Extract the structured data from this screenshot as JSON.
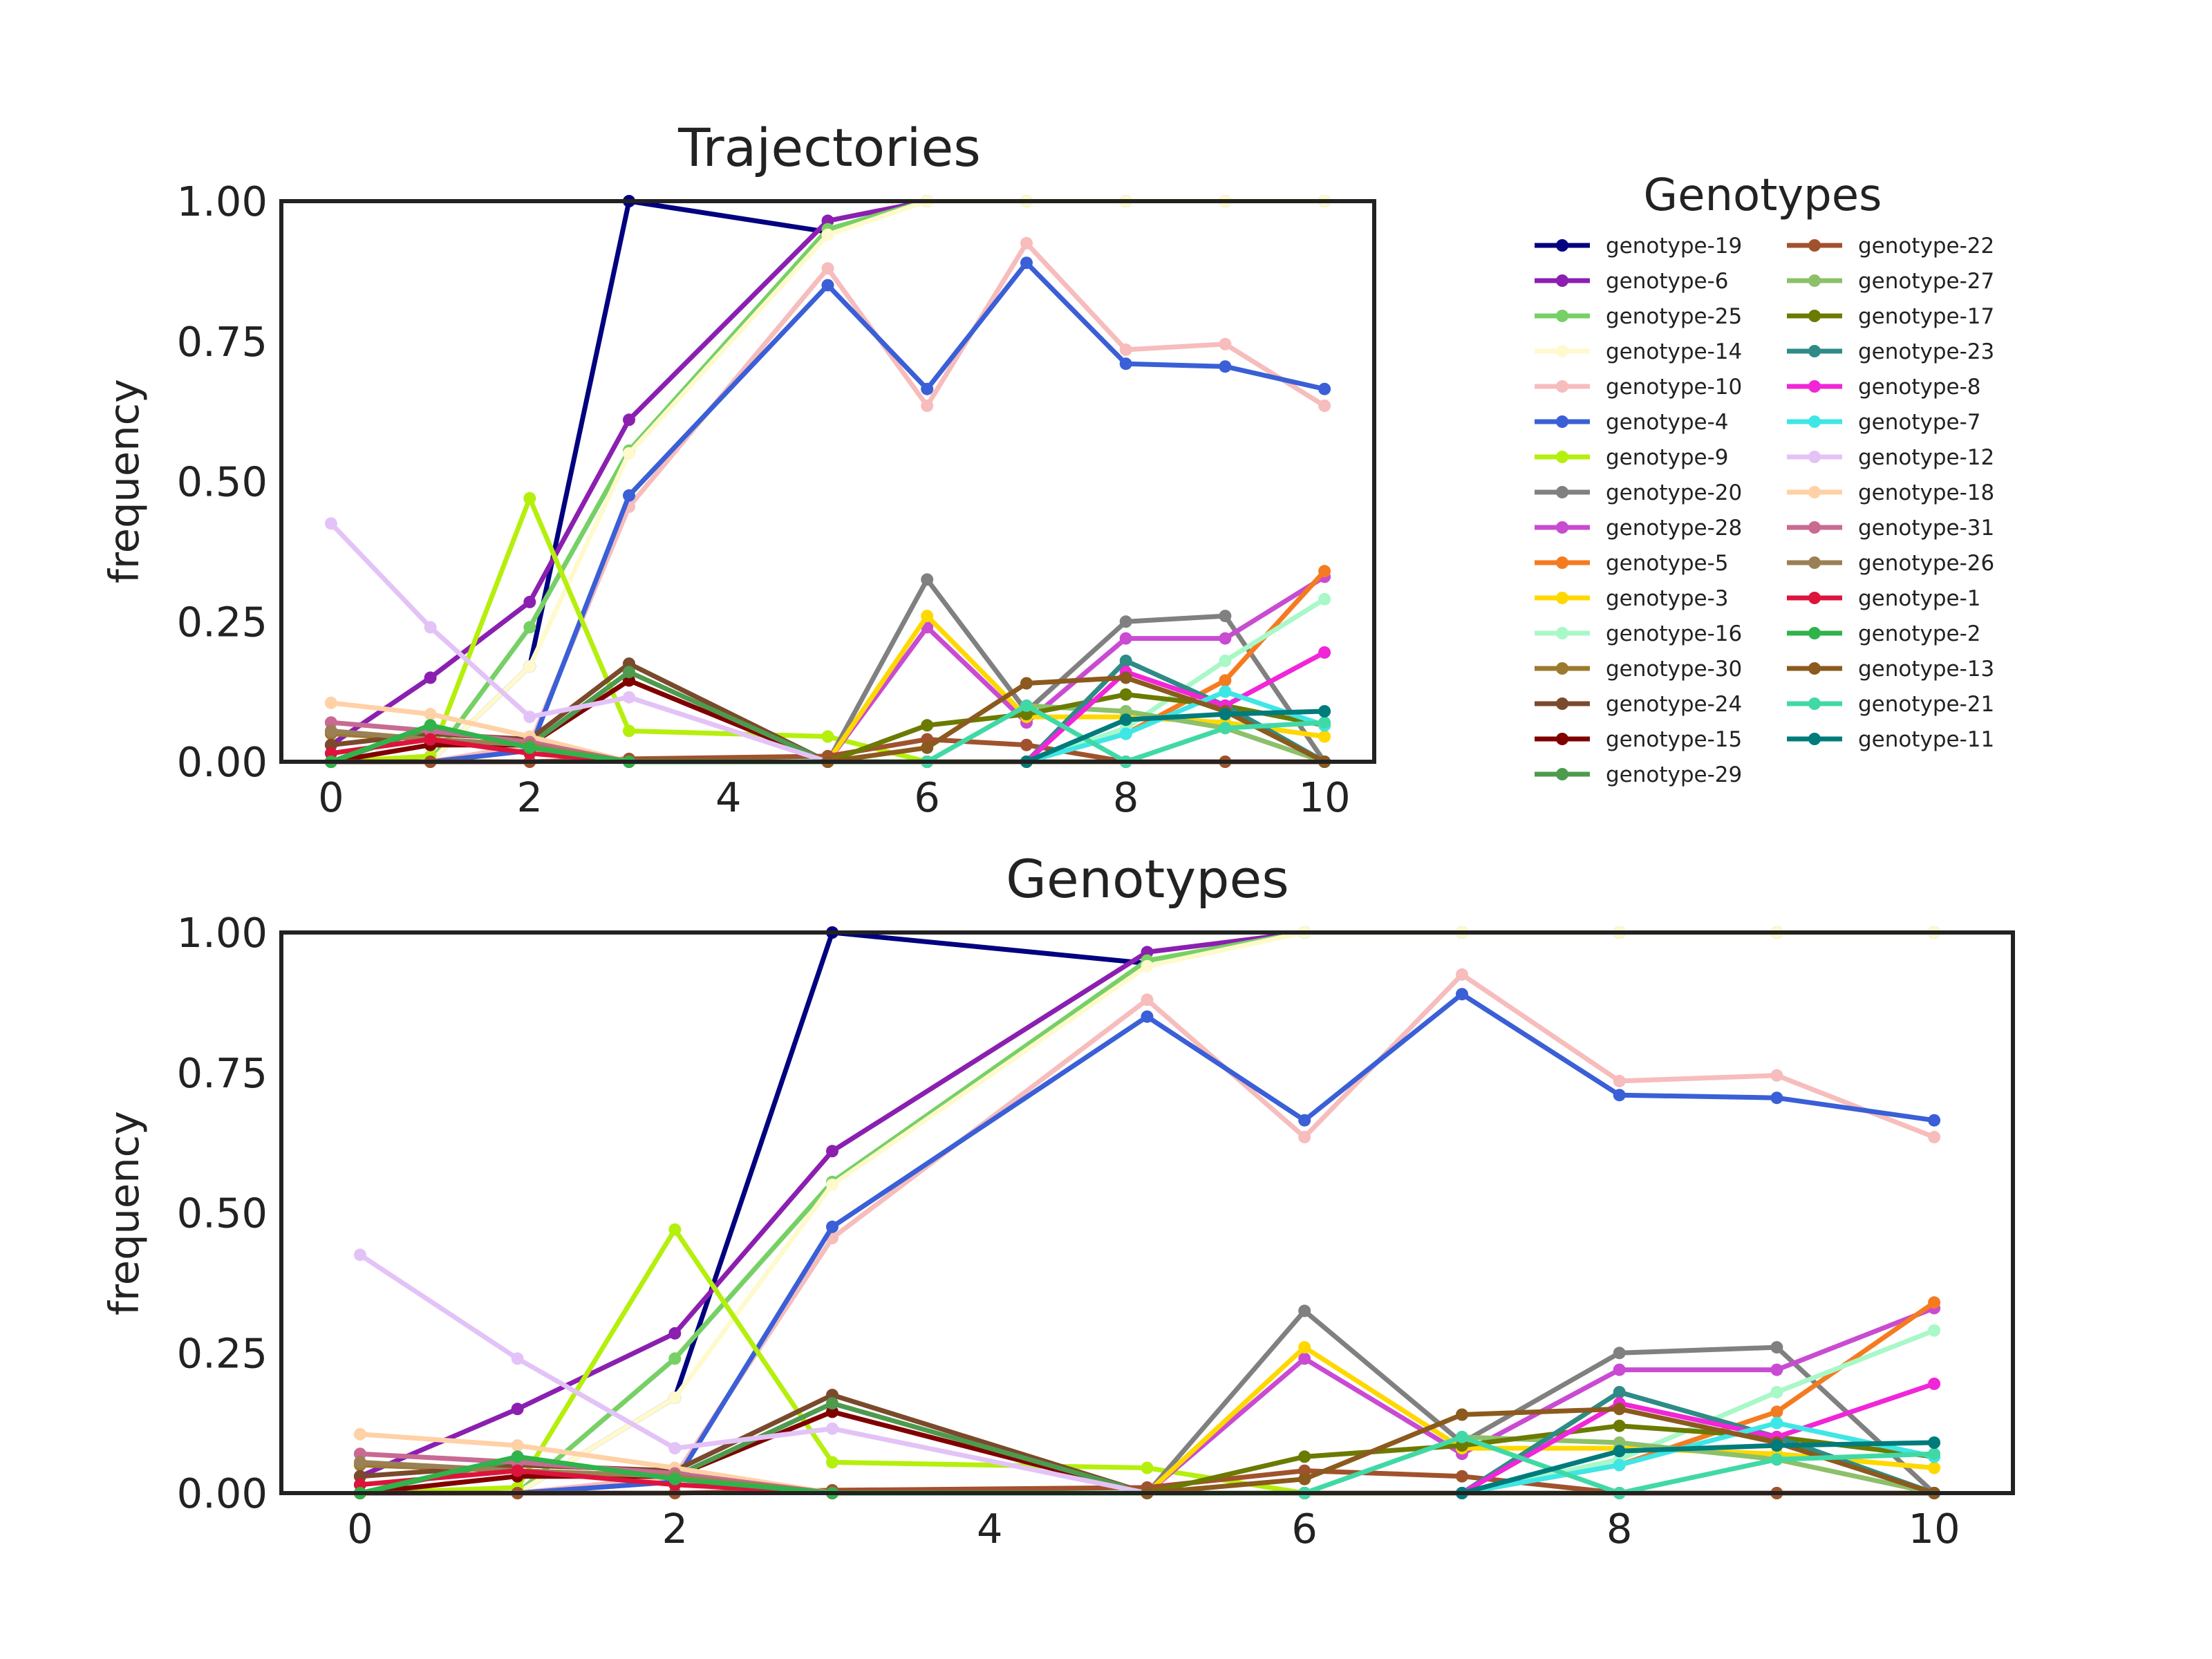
{
  "chart_data": [
    {
      "type": "line",
      "title": "Trajectories",
      "xlabel": "",
      "ylabel": "frequency",
      "xlim": [
        -0.5,
        10.5
      ],
      "ylim": [
        0,
        1
      ],
      "xticks": [
        "0",
        "2",
        "4",
        "6",
        "8",
        "10"
      ],
      "yticks": [
        "0.00",
        "0.25",
        "0.50",
        "0.75",
        "1.00"
      ],
      "grid": false
    },
    {
      "type": "line",
      "title": "Genotypes",
      "xlabel": "",
      "ylabel": "frequency",
      "xlim": [
        -0.5,
        10.5
      ],
      "ylim": [
        0,
        1
      ],
      "xticks": [
        "0",
        "2",
        "4",
        "6",
        "8",
        "10"
      ],
      "yticks": [
        "0.00",
        "0.25",
        "0.50",
        "0.75",
        "1.00"
      ],
      "grid": false
    }
  ],
  "legend": {
    "title": "Genotypes",
    "placement": "right of top chart, two columns"
  },
  "series": [
    {
      "name": "genotype-19",
      "color": "#000080",
      "x": [
        0,
        1,
        2,
        3,
        5
      ],
      "y": [
        0.0,
        0.0,
        0.17,
        1.0,
        0.945
      ]
    },
    {
      "name": "genotype-6",
      "color": "#8b1fb0",
      "x": [
        0,
        1,
        2,
        3,
        5,
        6,
        7,
        8,
        9,
        10
      ],
      "y": [
        0.03,
        0.15,
        0.285,
        0.61,
        0.965,
        1.0,
        1.0,
        1.0,
        1.0,
        1.0
      ]
    },
    {
      "name": "genotype-25",
      "color": "#77d066",
      "x": [
        0,
        1,
        2,
        3,
        5,
        6,
        7,
        8,
        9,
        10
      ],
      "y": [
        0.0,
        0.0,
        0.24,
        0.555,
        0.95,
        1.0,
        1.0,
        1.0,
        1.0,
        1.0
      ]
    },
    {
      "name": "genotype-14",
      "color": "#fffacd",
      "x": [
        0,
        1,
        2,
        3,
        5,
        6,
        7,
        8,
        9,
        10
      ],
      "y": [
        0.0,
        0.0,
        0.17,
        0.55,
        0.94,
        1.0,
        1.0,
        1.0,
        1.0,
        1.0
      ]
    },
    {
      "name": "genotype-10",
      "color": "#f7bcbc",
      "x": [
        0,
        1,
        2,
        3,
        5,
        6,
        7,
        8,
        9,
        10
      ],
      "y": [
        0.0,
        0.0,
        0.03,
        0.455,
        0.88,
        0.635,
        0.925,
        0.735,
        0.745,
        0.635
      ]
    },
    {
      "name": "genotype-4",
      "color": "#3a5fd6",
      "x": [
        0,
        1,
        2,
        3,
        5,
        6,
        7,
        8,
        9,
        10
      ],
      "y": [
        0.0,
        0.0,
        0.02,
        0.475,
        0.85,
        0.665,
        0.89,
        0.71,
        0.705,
        0.665
      ]
    },
    {
      "name": "genotype-9",
      "color": "#b5ef0c",
      "x": [
        0,
        1,
        2,
        3,
        5,
        6
      ],
      "y": [
        0.0,
        0.01,
        0.47,
        0.055,
        0.045,
        0.0
      ]
    },
    {
      "name": "genotype-20",
      "color": "#808080",
      "x": [
        5,
        6,
        7,
        8,
        9,
        10
      ],
      "y": [
        0.0,
        0.325,
        0.09,
        0.25,
        0.26,
        0.0
      ]
    },
    {
      "name": "genotype-28",
      "color": "#c94bd2",
      "x": [
        5,
        6,
        7,
        8,
        9,
        10
      ],
      "y": [
        0.0,
        0.24,
        0.07,
        0.22,
        0.22,
        0.33
      ]
    },
    {
      "name": "genotype-5",
      "color": "#f47b20",
      "x": [
        7,
        8,
        9,
        10
      ],
      "y": [
        0.0,
        0.05,
        0.145,
        0.34
      ]
    },
    {
      "name": "genotype-3",
      "color": "#ffd800",
      "x": [
        5,
        6,
        7,
        8,
        9,
        10
      ],
      "y": [
        0.0,
        0.26,
        0.08,
        0.08,
        0.07,
        0.045
      ]
    },
    {
      "name": "genotype-16",
      "color": "#a8f8c8",
      "x": [
        7,
        8,
        9,
        10
      ],
      "y": [
        0.0,
        0.06,
        0.18,
        0.29
      ]
    },
    {
      "name": "genotype-30",
      "color": "#9b7a2e",
      "x": [
        0,
        1,
        2,
        3,
        5,
        6,
        7,
        8,
        9,
        10
      ],
      "y": [
        0.05,
        0.04,
        0.03,
        0.0,
        0.0,
        0.0,
        0.0,
        0.0,
        0.0,
        0.0
      ]
    },
    {
      "name": "genotype-24",
      "color": "#7a4a2c",
      "x": [
        0,
        1,
        2,
        3,
        5,
        6
      ],
      "y": [
        0.03,
        0.05,
        0.04,
        0.175,
        0.0,
        0.0
      ]
    },
    {
      "name": "genotype-15",
      "color": "#800000",
      "x": [
        0,
        1,
        2,
        3,
        5,
        6
      ],
      "y": [
        0.0,
        0.03,
        0.03,
        0.145,
        0.0,
        0.0
      ]
    },
    {
      "name": "genotype-29",
      "color": "#4e9a4e",
      "x": [
        0,
        1,
        2,
        3,
        5,
        6
      ],
      "y": [
        0.0,
        0.06,
        0.03,
        0.16,
        0.0,
        0.0
      ]
    },
    {
      "name": "genotype-22",
      "color": "#a0522d",
      "x": [
        0,
        1,
        2,
        3,
        5,
        6,
        7,
        8,
        9,
        10
      ],
      "y": [
        0.0,
        0.0,
        0.0,
        0.005,
        0.01,
        0.04,
        0.03,
        0.0,
        0.0,
        0.0
      ]
    },
    {
      "name": "genotype-27",
      "color": "#8cc06a",
      "x": [
        7,
        8,
        9,
        10
      ],
      "y": [
        0.1,
        0.09,
        0.06,
        0.0
      ]
    },
    {
      "name": "genotype-17",
      "color": "#6b7a00",
      "x": [
        5,
        6,
        7,
        8,
        9,
        10
      ],
      "y": [
        0.0,
        0.065,
        0.085,
        0.12,
        0.1,
        0.065
      ]
    },
    {
      "name": "genotype-23",
      "color": "#2e8b86",
      "x": [
        7,
        8,
        9,
        10
      ],
      "y": [
        0.0,
        0.18,
        0.1,
        0.0
      ]
    },
    {
      "name": "genotype-8",
      "color": "#f026d8",
      "x": [
        7,
        8,
        9,
        10
      ],
      "y": [
        0.0,
        0.16,
        0.1,
        0.195
      ]
    },
    {
      "name": "genotype-7",
      "color": "#3fe6e6",
      "x": [
        7,
        8,
        9,
        10
      ],
      "y": [
        0.0,
        0.05,
        0.125,
        0.065
      ]
    },
    {
      "name": "genotype-12",
      "color": "#e3c3f7",
      "x": [
        0,
        1,
        2,
        3,
        5
      ],
      "y": [
        0.425,
        0.24,
        0.08,
        0.115,
        0.0
      ]
    },
    {
      "name": "genotype-18",
      "color": "#ffd1a6",
      "x": [
        0,
        1,
        2,
        3,
        5
      ],
      "y": [
        0.105,
        0.085,
        0.045,
        0.0,
        0.0
      ]
    },
    {
      "name": "genotype-31",
      "color": "#c86a92",
      "x": [
        0,
        1,
        2,
        3,
        5
      ],
      "y": [
        0.07,
        0.055,
        0.035,
        0.0,
        0.0
      ]
    },
    {
      "name": "genotype-26",
      "color": "#9b8055",
      "x": [
        0,
        1,
        2,
        3,
        5
      ],
      "y": [
        0.055,
        0.04,
        0.03,
        0.0,
        0.0
      ]
    },
    {
      "name": "genotype-1",
      "color": "#dc143c",
      "x": [
        0,
        1,
        2,
        3,
        5
      ],
      "y": [
        0.015,
        0.04,
        0.015,
        0.0,
        0.0
      ]
    },
    {
      "name": "genotype-2",
      "color": "#2fb34a",
      "x": [
        0,
        1,
        2,
        3,
        5
      ],
      "y": [
        0.0,
        0.065,
        0.025,
        0.0,
        0.0
      ]
    },
    {
      "name": "genotype-13",
      "color": "#8b5a1e",
      "x": [
        5,
        6,
        7,
        8,
        9,
        10
      ],
      "y": [
        0.0,
        0.025,
        0.14,
        0.15,
        0.09,
        0.0
      ]
    },
    {
      "name": "genotype-21",
      "color": "#40d9a6",
      "x": [
        6,
        7,
        8,
        9,
        10
      ],
      "y": [
        0.0,
        0.1,
        0.0,
        0.06,
        0.07
      ]
    },
    {
      "name": "genotype-11",
      "color": "#007b7b",
      "x": [
        7,
        8,
        9,
        10
      ],
      "y": [
        0.0,
        0.075,
        0.085,
        0.09
      ]
    }
  ]
}
